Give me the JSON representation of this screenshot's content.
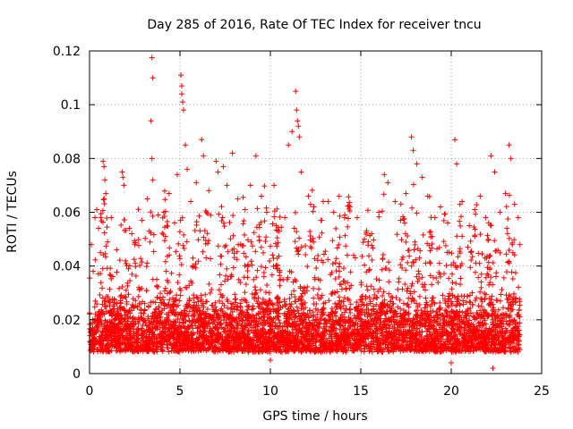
{
  "chart_data": {
    "type": "scatter",
    "title": "Day 285 of 2016, Rate Of TEC Index for receiver tncu",
    "xlabel": "GPS time / hours",
    "ylabel": "ROTI / TECUs",
    "xlim": [
      0,
      25
    ],
    "ylim": [
      0,
      0.12
    ],
    "x_ticks": [
      0,
      5,
      10,
      15,
      20,
      25
    ],
    "x_tick_labels": [
      "0",
      "5",
      "10",
      "15",
      "20",
      "25"
    ],
    "y_ticks": [
      0,
      0.02,
      0.04,
      0.06,
      0.08,
      0.1,
      0.12
    ],
    "y_tick_labels": [
      "0",
      "0.02",
      "0.04",
      "0.06",
      "0.08",
      "0.1",
      "0.12"
    ],
    "grid": true,
    "marker": "+",
    "color": "#ff0000",
    "series": [
      {
        "name": "ROTI",
        "points": [
          [
            0.1,
            0.048
          ],
          [
            0.2,
            0.038
          ],
          [
            0.3,
            0.058
          ],
          [
            0.4,
            0.061
          ],
          [
            0.5,
            0.054
          ],
          [
            0.6,
            0.045
          ],
          [
            0.75,
            0.079
          ],
          [
            0.8,
            0.077
          ],
          [
            0.85,
            0.072
          ],
          [
            0.9,
            0.067
          ],
          [
            1.2,
            0.058
          ],
          [
            1.5,
            0.046
          ],
          [
            1.8,
            0.075
          ],
          [
            1.85,
            0.073
          ],
          [
            1.9,
            0.07
          ],
          [
            2.2,
            0.054
          ],
          [
            2.5,
            0.048
          ],
          [
            2.9,
            0.057
          ],
          [
            3.2,
            0.065
          ],
          [
            3.3,
            0.053
          ],
          [
            3.45,
            0.1175
          ],
          [
            3.5,
            0.11
          ],
          [
            3.4,
            0.094
          ],
          [
            3.45,
            0.08
          ],
          [
            3.5,
            0.072
          ],
          [
            3.8,
            0.059
          ],
          [
            4.1,
            0.06
          ],
          [
            4.4,
            0.067
          ],
          [
            4.7,
            0.056
          ],
          [
            4.85,
            0.074
          ],
          [
            5.05,
            0.111
          ],
          [
            5.1,
            0.107
          ],
          [
            5.1,
            0.104
          ],
          [
            5.15,
            0.101
          ],
          [
            5.2,
            0.098
          ],
          [
            5.3,
            0.085
          ],
          [
            5.4,
            0.076
          ],
          [
            5.6,
            0.064
          ],
          [
            5.9,
            0.071
          ],
          [
            6.2,
            0.087
          ],
          [
            6.3,
            0.081
          ],
          [
            6.6,
            0.068
          ],
          [
            7.0,
            0.079
          ],
          [
            7.1,
            0.075
          ],
          [
            7.4,
            0.077
          ],
          [
            7.6,
            0.07
          ],
          [
            7.9,
            0.082
          ],
          [
            8.2,
            0.065
          ],
          [
            8.6,
            0.061
          ],
          [
            8.9,
            0.07
          ],
          [
            9.2,
            0.081
          ],
          [
            9.5,
            0.066
          ],
          [
            9.8,
            0.06
          ],
          [
            10.2,
            0.07
          ],
          [
            10.5,
            0.053
          ],
          [
            10.8,
            0.058
          ],
          [
            11.0,
            0.085
          ],
          [
            11.2,
            0.09
          ],
          [
            11.4,
            0.105
          ],
          [
            11.45,
            0.098
          ],
          [
            11.5,
            0.094
          ],
          [
            11.55,
            0.092
          ],
          [
            11.6,
            0.088
          ],
          [
            11.7,
            0.075
          ],
          [
            12.1,
            0.066
          ],
          [
            12.4,
            0.062
          ],
          [
            12.8,
            0.057
          ],
          [
            13.2,
            0.064
          ],
          [
            13.5,
            0.06
          ],
          [
            13.8,
            0.066
          ],
          [
            14.1,
            0.058
          ],
          [
            14.4,
            0.062
          ],
          [
            14.8,
            0.058
          ],
          [
            15.2,
            0.05
          ],
          [
            15.6,
            0.052
          ],
          [
            16.0,
            0.06
          ],
          [
            16.3,
            0.074
          ],
          [
            16.5,
            0.071
          ],
          [
            16.9,
            0.064
          ],
          [
            17.2,
            0.057
          ],
          [
            17.5,
            0.067
          ],
          [
            17.8,
            0.088
          ],
          [
            17.9,
            0.083
          ],
          [
            18.1,
            0.078
          ],
          [
            18.4,
            0.073
          ],
          [
            18.7,
            0.066
          ],
          [
            19.1,
            0.058
          ],
          [
            19.4,
            0.062
          ],
          [
            19.8,
            0.056
          ],
          [
            20.2,
            0.087
          ],
          [
            20.3,
            0.078
          ],
          [
            20.6,
            0.064
          ],
          [
            21.0,
            0.055
          ],
          [
            21.3,
            0.061
          ],
          [
            21.6,
            0.066
          ],
          [
            21.9,
            0.058
          ],
          [
            22.2,
            0.081
          ],
          [
            22.4,
            0.075
          ],
          [
            22.7,
            0.06
          ],
          [
            23.0,
            0.067
          ],
          [
            23.2,
            0.085
          ],
          [
            23.3,
            0.08
          ],
          [
            23.5,
            0.063
          ],
          [
            23.7,
            0.058
          ],
          [
            23.8,
            0.048
          ],
          [
            22.3,
            0.002
          ],
          [
            20.0,
            0.004
          ],
          [
            10.0,
            0.005
          ]
        ]
      }
    ]
  }
}
